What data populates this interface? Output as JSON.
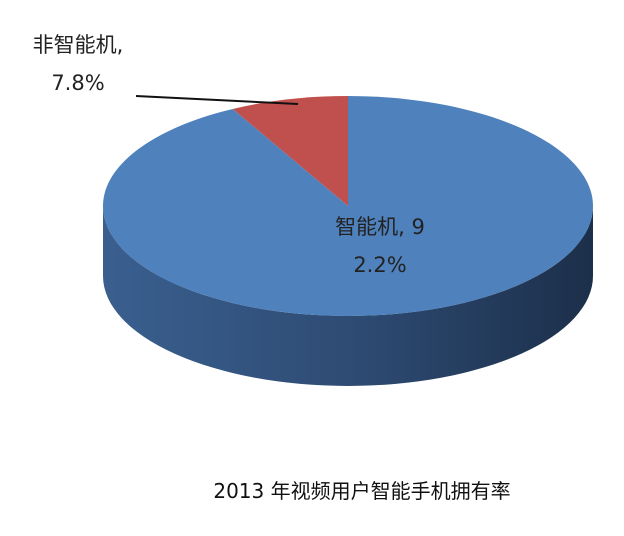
{
  "chart_data": {
    "type": "pie3d",
    "title": "2013 年视频用户智能手机拥有率",
    "values": [
      7.8,
      92.2
    ],
    "value_labels": [
      "非智能机, 7.8%",
      "智能机, 92.2%"
    ],
    "colors": [
      "#c0504d",
      "#4f81bd"
    ]
  }
}
